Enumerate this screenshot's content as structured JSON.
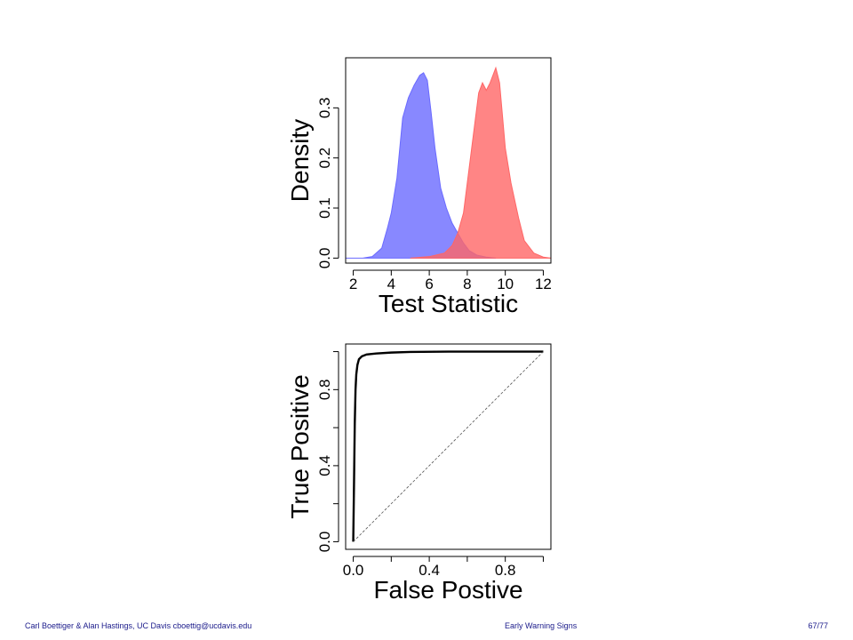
{
  "footer": {
    "authors": "Carl Boettiger & Alan Hastings, UC Davis cboettig@ucdavis.edu",
    "title": "Early Warning Signs",
    "page": "67/77"
  },
  "chart_data": [
    {
      "type": "area",
      "xlabel": "Test Statistic",
      "ylabel": "Density",
      "xlim": [
        1.6,
        12.4
      ],
      "ylim": [
        -0.01,
        0.4
      ],
      "xticks": [
        2,
        4,
        6,
        8,
        10,
        12
      ],
      "yticks": [
        0.0,
        0.1,
        0.2,
        0.3
      ],
      "xtick_labels": [
        "2",
        "4",
        "6",
        "8",
        "10",
        "12"
      ],
      "ytick_labels": [
        "0.0",
        "0.1",
        "0.2",
        "0.3"
      ],
      "grid": false,
      "series": [
        {
          "color": "#6a6aff",
          "x": [
            1.6,
            2.5,
            3.0,
            3.5,
            3.8,
            4.0,
            4.3,
            4.6,
            4.9,
            5.2,
            5.5,
            5.7,
            5.9,
            6.1,
            6.3,
            6.6,
            6.9,
            7.2,
            7.5,
            7.8,
            8.1,
            8.5,
            9.0,
            9.5
          ],
          "values": [
            0.0,
            0.0,
            0.003,
            0.02,
            0.06,
            0.09,
            0.16,
            0.28,
            0.32,
            0.345,
            0.365,
            0.37,
            0.355,
            0.29,
            0.22,
            0.14,
            0.1,
            0.07,
            0.05,
            0.03,
            0.015,
            0.006,
            0.002,
            0.0
          ]
        },
        {
          "color": "#ff6666",
          "x": [
            5.0,
            6.0,
            6.8,
            7.2,
            7.5,
            7.8,
            8.1,
            8.4,
            8.6,
            8.8,
            9.0,
            9.2,
            9.5,
            9.7,
            10.0,
            10.3,
            10.7,
            11.0,
            11.5,
            12.0,
            12.4
          ],
          "values": [
            0.0,
            0.003,
            0.01,
            0.025,
            0.05,
            0.09,
            0.18,
            0.27,
            0.33,
            0.35,
            0.335,
            0.35,
            0.38,
            0.35,
            0.22,
            0.15,
            0.08,
            0.035,
            0.01,
            0.002,
            0.0
          ]
        }
      ]
    },
    {
      "type": "line",
      "xlabel": "False Postive",
      "ylabel": "True Positive",
      "xlim": [
        -0.04,
        1.04
      ],
      "ylim": [
        -0.04,
        1.04
      ],
      "xticks": [
        0.0,
        0.2,
        0.4,
        0.6,
        0.8,
        1.0
      ],
      "yticks": [
        0.0,
        0.2,
        0.4,
        0.6,
        0.8,
        1.0
      ],
      "xtick_labels": [
        "0.0",
        "",
        "0.4",
        "",
        "0.8",
        ""
      ],
      "ytick_labels": [
        "0.0",
        "",
        "0.4",
        "",
        "0.8",
        ""
      ],
      "grid": false,
      "series": [
        {
          "style": "solid",
          "color": "#000000",
          "x": [
            0.0,
            0.004,
            0.008,
            0.012,
            0.016,
            0.022,
            0.03,
            0.045,
            0.07,
            0.12,
            0.2,
            0.3,
            0.5,
            1.0
          ],
          "values": [
            0.0,
            0.3,
            0.62,
            0.8,
            0.88,
            0.93,
            0.96,
            0.975,
            0.985,
            0.99,
            0.995,
            0.998,
            1.0,
            1.0
          ]
        },
        {
          "style": "dashed",
          "color": "#555555",
          "x": [
            0.0,
            1.0
          ],
          "values": [
            0.0,
            1.0
          ]
        }
      ]
    }
  ]
}
